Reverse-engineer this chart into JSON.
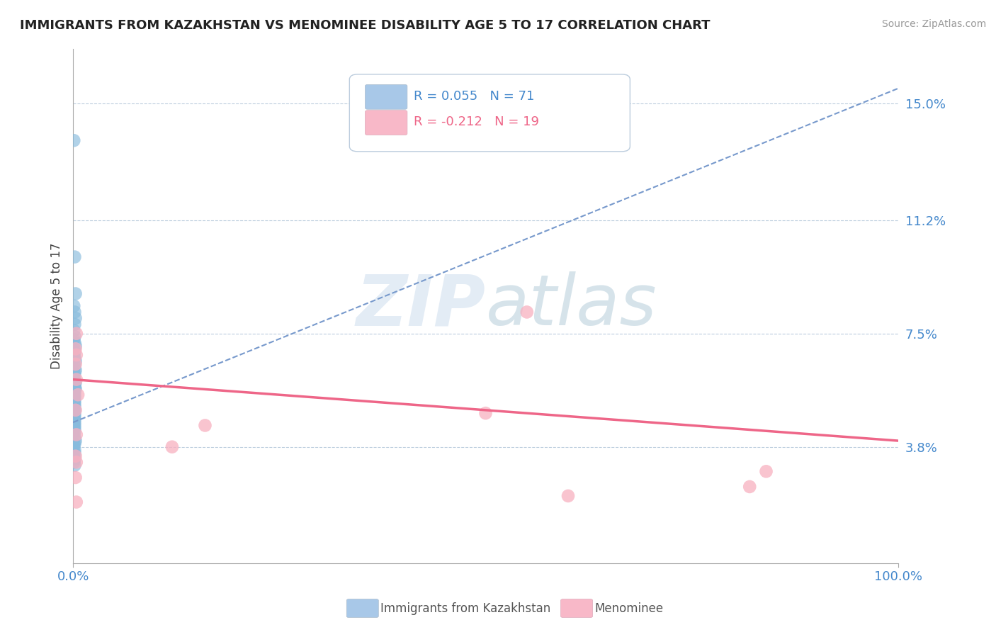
{
  "title": "IMMIGRANTS FROM KAZAKHSTAN VS MENOMINEE DISABILITY AGE 5 TO 17 CORRELATION CHART",
  "source": "Source: ZipAtlas.com",
  "ylabel": "Disability Age 5 to 17",
  "xlim": [
    0.0,
    1.0
  ],
  "ylim": [
    0.0,
    0.168
  ],
  "yticks": [
    0.038,
    0.075,
    0.112,
    0.15
  ],
  "ytick_labels": [
    "3.8%",
    "7.5%",
    "11.2%",
    "15.0%"
  ],
  "xticks": [
    0.0,
    1.0
  ],
  "xtick_labels": [
    "0.0%",
    "100.0%"
  ],
  "legend_labels": [
    "R = 0.055   N = 71",
    "R = -0.212   N = 19"
  ],
  "legend_colors": [
    "#a8c8e8",
    "#f8b8c8"
  ],
  "bottom_legend": [
    "Immigrants from Kazakhstan",
    "Menominee"
  ],
  "blue_color": "#88bbdd",
  "pink_color": "#f8b0c0",
  "trend_blue_color": "#7799cc",
  "trend_pink_color": "#ee6688",
  "title_color": "#222222",
  "axis_tick_color": "#4488cc",
  "grid_color": "#bbccdd",
  "watermark_zip": "ZIP",
  "watermark_atlas": "atlas",
  "blue_scatter_x": [
    0.001,
    0.002,
    0.003,
    0.001,
    0.002,
    0.003,
    0.002,
    0.001,
    0.002,
    0.001,
    0.002,
    0.003,
    0.001,
    0.002,
    0.001,
    0.002,
    0.003,
    0.001,
    0.002,
    0.003,
    0.001,
    0.002,
    0.001,
    0.002,
    0.003,
    0.001,
    0.002,
    0.001,
    0.002,
    0.003,
    0.001,
    0.002,
    0.001,
    0.002,
    0.001,
    0.002,
    0.001,
    0.002,
    0.001,
    0.002,
    0.001,
    0.002,
    0.001,
    0.002,
    0.001,
    0.002,
    0.001,
    0.002,
    0.001,
    0.002,
    0.001,
    0.002,
    0.001,
    0.002,
    0.001,
    0.002,
    0.001,
    0.002,
    0.001,
    0.002,
    0.003,
    0.001,
    0.002,
    0.001,
    0.002,
    0.001,
    0.002,
    0.001,
    0.002,
    0.001,
    0.002
  ],
  "blue_scatter_y": [
    0.138,
    0.1,
    0.088,
    0.084,
    0.082,
    0.08,
    0.078,
    0.076,
    0.074,
    0.073,
    0.072,
    0.071,
    0.07,
    0.069,
    0.068,
    0.067,
    0.066,
    0.065,
    0.064,
    0.063,
    0.062,
    0.062,
    0.061,
    0.06,
    0.059,
    0.059,
    0.058,
    0.058,
    0.057,
    0.057,
    0.056,
    0.056,
    0.055,
    0.055,
    0.054,
    0.054,
    0.053,
    0.053,
    0.052,
    0.052,
    0.051,
    0.051,
    0.05,
    0.05,
    0.049,
    0.049,
    0.048,
    0.048,
    0.047,
    0.047,
    0.046,
    0.046,
    0.045,
    0.045,
    0.044,
    0.044,
    0.043,
    0.043,
    0.042,
    0.041,
    0.04,
    0.039,
    0.039,
    0.038,
    0.037,
    0.036,
    0.036,
    0.035,
    0.034,
    0.033,
    0.032
  ],
  "pink_scatter_x": [
    0.003,
    0.004,
    0.006,
    0.004,
    0.003,
    0.004,
    0.003,
    0.55,
    0.004,
    0.12,
    0.16,
    0.003,
    0.004,
    0.003,
    0.84,
    0.004,
    0.5,
    0.82,
    0.6
  ],
  "pink_scatter_y": [
    0.065,
    0.06,
    0.055,
    0.075,
    0.07,
    0.068,
    0.05,
    0.082,
    0.042,
    0.038,
    0.045,
    0.035,
    0.033,
    0.028,
    0.03,
    0.02,
    0.049,
    0.025,
    0.022
  ],
  "blue_trend_x0": 0.0,
  "blue_trend_y0": 0.046,
  "blue_trend_x1": 1.0,
  "blue_trend_y1": 0.155,
  "pink_trend_x0": 0.0,
  "pink_trend_y0": 0.06,
  "pink_trend_x1": 1.0,
  "pink_trend_y1": 0.04
}
